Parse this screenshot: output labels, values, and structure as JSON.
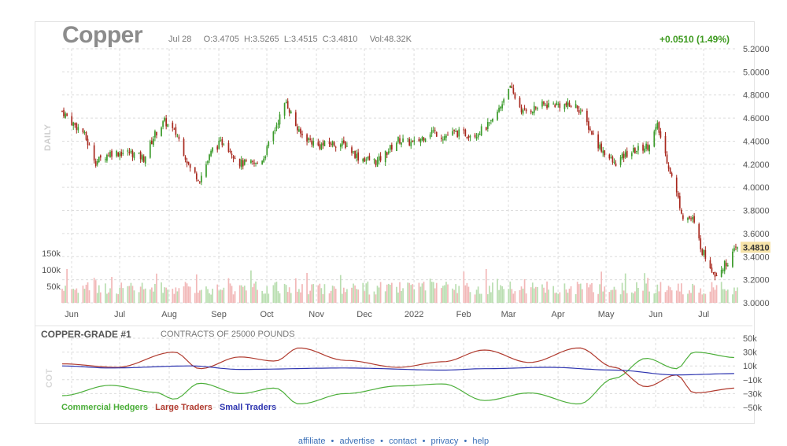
{
  "header": {
    "title": "Copper",
    "date": "Jul 28",
    "open": "O:3.4705",
    "high": "H:3.5265",
    "low": "L:3.4515",
    "close": "C:3.4810",
    "volume": "Vol:48.32K",
    "change": "+0.0510 (1.49%)",
    "panel_label": "DAILY"
  },
  "colors": {
    "up": "#3a9a2a",
    "down": "#a8281e",
    "vol_up": "#b9deb0",
    "vol_down": "#f2b8b8",
    "commercial": "#4caf3a",
    "large": "#b03a2e",
    "small": "#2e35b0",
    "price_tag": "#f6e3a8"
  },
  "price_axis": {
    "ticks": [
      "5.2000",
      "5.0000",
      "4.8000",
      "4.6000",
      "4.4000",
      "4.2000",
      "4.0000",
      "3.8000",
      "3.6000",
      "3.4000",
      "3.2000",
      "3.0000"
    ],
    "last": "3.4810",
    "volume_ticks": [
      "150k",
      "100k",
      "50k"
    ]
  },
  "time_axis": {
    "labels": [
      "Jun",
      "Jul",
      "Aug",
      "Sep",
      "Oct",
      "Nov",
      "Dec",
      "2022",
      "Feb",
      "Mar",
      "Apr",
      "May",
      "Jun",
      "Jul"
    ]
  },
  "cot": {
    "title": "COPPER-GRADE #1",
    "subtitle": "CONTRACTS OF 25000 POUNDS",
    "side_label": "COT",
    "ticks": [
      "50k",
      "30k",
      "10k",
      "−10k",
      "−30k",
      "−50k"
    ],
    "legend": [
      "Commercial Hedgers",
      "Large Traders",
      "Small Traders"
    ]
  },
  "footer": {
    "links": [
      "affiliate",
      "advertise",
      "contact",
      "privacy",
      "help"
    ],
    "separator": "•"
  },
  "chart_data": [
    {
      "type": "candlestick",
      "name": "",
      "x_range": [
        "2021-06",
        "2022-07-28"
      ],
      "ylim": [
        3.0,
        5.2
      ],
      "grid": true,
      "anchors": [
        [
          "2021-06-01",
          4.66
        ],
        [
          "2021-06-08",
          4.55
        ],
        [
          "2021-06-14",
          4.48
        ],
        [
          "2021-06-22",
          4.22
        ],
        [
          "2021-07-01",
          4.3
        ],
        [
          "2021-07-14",
          4.3
        ],
        [
          "2021-07-22",
          4.25
        ],
        [
          "2021-07-29",
          4.46
        ],
        [
          "2021-08-04",
          4.57
        ],
        [
          "2021-08-12",
          4.45
        ],
        [
          "2021-08-20",
          4.16
        ],
        [
          "2021-08-26",
          4.07
        ],
        [
          "2021-09-03",
          4.33
        ],
        [
          "2021-09-10",
          4.4
        ],
        [
          "2021-09-20",
          4.21
        ],
        [
          "2021-09-30",
          4.2
        ],
        [
          "2021-10-05",
          4.26
        ],
        [
          "2021-10-14",
          4.58
        ],
        [
          "2021-10-19",
          4.74
        ],
        [
          "2021-10-27",
          4.47
        ],
        [
          "2021-11-08",
          4.36
        ],
        [
          "2021-11-16",
          4.38
        ],
        [
          "2021-11-25",
          4.37
        ],
        [
          "2021-12-03",
          4.26
        ],
        [
          "2021-12-15",
          4.22
        ],
        [
          "2021-12-28",
          4.41
        ],
        [
          "2022-01-07",
          4.38
        ],
        [
          "2022-01-18",
          4.49
        ],
        [
          "2022-01-25",
          4.44
        ],
        [
          "2022-02-01",
          4.47
        ],
        [
          "2022-02-14",
          4.46
        ],
        [
          "2022-02-24",
          4.55
        ],
        [
          "2022-03-02",
          4.7
        ],
        [
          "2022-03-07",
          4.88
        ],
        [
          "2022-03-16",
          4.65
        ],
        [
          "2022-03-28",
          4.71
        ],
        [
          "2022-04-05",
          4.72
        ],
        [
          "2022-04-19",
          4.7
        ],
        [
          "2022-04-22",
          4.63
        ],
        [
          "2022-05-02",
          4.37
        ],
        [
          "2022-05-12",
          4.2
        ],
        [
          "2022-05-20",
          4.29
        ],
        [
          "2022-06-02",
          4.36
        ],
        [
          "2022-06-08",
          4.53
        ],
        [
          "2022-06-17",
          4.09
        ],
        [
          "2022-06-24",
          3.75
        ],
        [
          "2022-06-30",
          3.72
        ],
        [
          "2022-07-06",
          3.45
        ],
        [
          "2022-07-14",
          3.25
        ],
        [
          "2022-07-21",
          3.34
        ],
        [
          "2022-07-28",
          3.48
        ]
      ],
      "last_bar": {
        "date": "Jul 28",
        "open": 3.4705,
        "high": 3.5265,
        "low": 3.4515,
        "close": 3.481,
        "volume": "48.32K"
      }
    },
    {
      "type": "line",
      "name": "COPPER-GRADE #1",
      "ylim": [
        -50000,
        50000
      ],
      "grid": true,
      "series": [
        {
          "name": "Commercial Hedgers",
          "points": [
            [
              "2021-06-01",
              -33000
            ],
            [
              "2021-07-01",
              -18000
            ],
            [
              "2021-07-29",
              -28000
            ],
            [
              "2021-08-10",
              -38000
            ],
            [
              "2021-08-26",
              -15000
            ],
            [
              "2021-09-20",
              -30000
            ],
            [
              "2021-10-12",
              -22000
            ],
            [
              "2021-10-27",
              -45000
            ],
            [
              "2021-11-25",
              -30000
            ],
            [
              "2021-12-28",
              -19000
            ],
            [
              "2022-01-25",
              -16000
            ],
            [
              "2022-02-20",
              -40000
            ],
            [
              "2022-03-20",
              -29000
            ],
            [
              "2022-04-20",
              -45000
            ],
            [
              "2022-05-12",
              -8000
            ],
            [
              "2022-06-01",
              21000
            ],
            [
              "2022-06-20",
              6000
            ],
            [
              "2022-07-01",
              30000
            ],
            [
              "2022-07-28",
              22000
            ]
          ]
        },
        {
          "name": "Large Traders",
          "points": [
            [
              "2021-06-01",
              13000
            ],
            [
              "2021-07-05",
              8000
            ],
            [
              "2021-08-10",
              30000
            ],
            [
              "2021-08-26",
              6000
            ],
            [
              "2021-09-20",
              23000
            ],
            [
              "2021-10-12",
              17000
            ],
            [
              "2021-10-27",
              36000
            ],
            [
              "2021-11-25",
              18000
            ],
            [
              "2021-12-28",
              8000
            ],
            [
              "2022-01-25",
              16000
            ],
            [
              "2022-02-20",
              33000
            ],
            [
              "2022-03-20",
              15000
            ],
            [
              "2022-04-20",
              36000
            ],
            [
              "2022-05-12",
              8000
            ],
            [
              "2022-06-01",
              -20000
            ],
            [
              "2022-06-20",
              -3000
            ],
            [
              "2022-07-01",
              -29000
            ],
            [
              "2022-07-28",
              -22000
            ]
          ]
        },
        {
          "name": "Small Traders",
          "points": [
            [
              "2021-06-01",
              10000
            ],
            [
              "2021-07-01",
              7000
            ],
            [
              "2021-08-20",
              10000
            ],
            [
              "2021-09-20",
              5000
            ],
            [
              "2021-11-25",
              7000
            ],
            [
              "2022-01-25",
              4000
            ],
            [
              "2022-02-20",
              6000
            ],
            [
              "2022-04-01",
              8000
            ],
            [
              "2022-05-12",
              4000
            ],
            [
              "2022-06-20",
              -3000
            ],
            [
              "2022-07-28",
              -1000
            ]
          ]
        }
      ]
    }
  ]
}
